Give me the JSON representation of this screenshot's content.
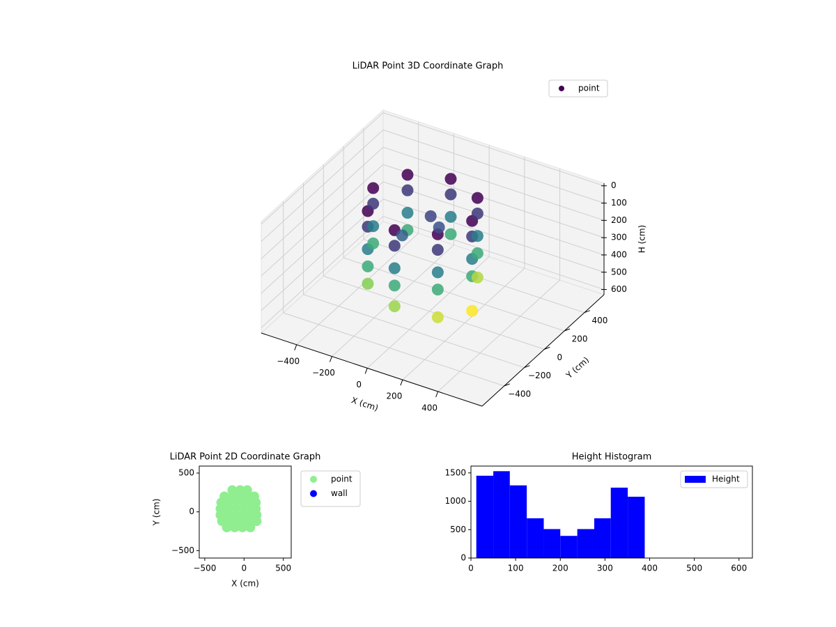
{
  "chart_data": [
    {
      "type": "scatter3d",
      "title": "LiDAR Point 3D Coordinate Graph",
      "xlabel": "X (cm)",
      "ylabel": "Y (cm)",
      "zlabel": "H (cm)",
      "xlim": [
        -600,
        650
      ],
      "ylim": [
        -620,
        595
      ],
      "zlim": [
        630,
        -15
      ],
      "xticks": [
        {
          "value": -400,
          "label": "−400"
        },
        {
          "value": -200,
          "label": "−200"
        },
        0,
        200,
        400
      ],
      "yticks": [
        {
          "value": -400,
          "label": "−400"
        },
        {
          "value": -200,
          "label": "−200"
        },
        0,
        200,
        400
      ],
      "zticks": [
        0,
        100,
        200,
        300,
        400,
        500,
        600
      ],
      "legend": "upper right",
      "series": [
        {
          "name": "point",
          "color": "#440154",
          "colormap": "viridis",
          "x": [
            -50,
            -248,
            -330,
            -248,
            -50,
            148,
            230,
            148,
            -50,
            -248,
            -330,
            -248,
            -50,
            148,
            230,
            148,
            -50,
            -248,
            -330,
            -248,
            -50,
            148,
            230,
            148,
            -50,
            -248,
            -330,
            -248,
            -50,
            148,
            230,
            148,
            -248,
            -50,
            148,
            230,
            148,
            -50,
            -120,
            20
          ],
          "y": [
            300,
            218,
            20,
            -178,
            -260,
            -178,
            20,
            218,
            300,
            218,
            20,
            -178,
            -260,
            -178,
            20,
            218,
            300,
            218,
            20,
            -178,
            -260,
            -178,
            20,
            218,
            300,
            218,
            20,
            -178,
            -260,
            -178,
            20,
            218,
            -178,
            -260,
            -178,
            20,
            218,
            100,
            -60,
            60
          ],
          "z": [
            40,
            40,
            40,
            40,
            40,
            40,
            40,
            40,
            130,
            130,
            130,
            130,
            130,
            130,
            130,
            130,
            260,
            260,
            260,
            260,
            260,
            260,
            260,
            260,
            360,
            360,
            360,
            360,
            360,
            360,
            360,
            360,
            460,
            480,
            520,
            560,
            500,
            150,
            200,
            170
          ]
        }
      ]
    },
    {
      "type": "scatter",
      "title": "LiDAR Point 2D Coordinate Graph",
      "xlabel": "X (cm)",
      "ylabel": "Y (cm)",
      "xlim": [
        -570,
        600
      ],
      "ylim": [
        -595,
        590
      ],
      "xticks": [
        {
          "value": -500,
          "label": "−500"
        },
        0,
        500
      ],
      "yticks": [
        {
          "value": -500,
          "label": "−500"
        },
        0,
        500
      ],
      "legend": "outside upper right",
      "series": [
        {
          "name": "point",
          "color": "#90ee90",
          "x": [
            -150,
            -50,
            40,
            -250,
            -150,
            -50,
            50,
            130,
            -290,
            -200,
            -100,
            0,
            100,
            150,
            -300,
            -200,
            -100,
            0,
            100,
            150,
            -300,
            -200,
            -100,
            0,
            100,
            160,
            -280,
            -180,
            -80,
            20,
            120,
            160,
            -220,
            -120,
            -20,
            80
          ],
          "y": [
            280,
            280,
            280,
            200,
            200,
            200,
            200,
            200,
            120,
            120,
            120,
            120,
            120,
            120,
            40,
            40,
            40,
            40,
            40,
            40,
            -40,
            -40,
            -40,
            -40,
            -40,
            -40,
            -120,
            -120,
            -120,
            -120,
            -120,
            -120,
            -200,
            -200,
            -200,
            -200
          ]
        },
        {
          "name": "wall",
          "color": "#0000ff",
          "x": [],
          "y": []
        }
      ]
    },
    {
      "type": "histogram",
      "title": "Height Histogram",
      "xlim": [
        0,
        630
      ],
      "ylim": [
        0,
        1620
      ],
      "xticks": [
        0,
        100,
        200,
        300,
        400,
        500,
        600
      ],
      "yticks": [
        0,
        500,
        1000,
        1500
      ],
      "legend": "upper right",
      "bins": [
        12,
        50,
        87,
        125,
        163,
        200,
        238,
        276,
        313,
        351,
        389
      ],
      "series": [
        {
          "name": "Height",
          "color": "#0000ff",
          "values": [
            1450,
            1530,
            1280,
            700,
            510,
            390,
            510,
            700,
            1240,
            1080
          ]
        }
      ]
    }
  ]
}
